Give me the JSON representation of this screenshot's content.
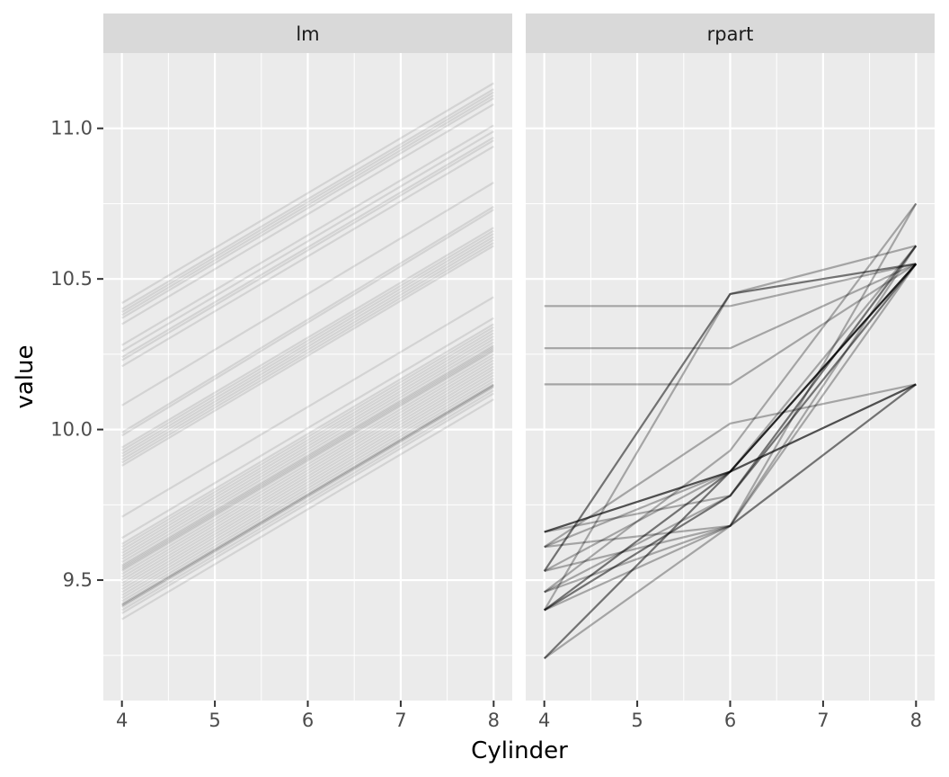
{
  "chart_data": {
    "type": "line",
    "facet_var": "model",
    "facets": [
      {
        "label": "lm",
        "series_points_x": [
          4,
          8
        ],
        "line_alpha": 0.1,
        "series": [
          {
            "values": [
              10.42,
              11.15
            ]
          },
          {
            "values": [
              10.4,
              11.13
            ]
          },
          {
            "values": [
              10.39,
              11.12
            ]
          },
          {
            "values": [
              10.38,
              11.11
            ]
          },
          {
            "values": [
              10.37,
              11.1
            ]
          },
          {
            "values": [
              10.35,
              11.08
            ]
          },
          {
            "values": [
              10.28,
              11.01
            ]
          },
          {
            "values": [
              10.26,
              10.99
            ]
          },
          {
            "values": [
              10.24,
              10.97
            ]
          },
          {
            "values": [
              10.23,
              10.96
            ]
          },
          {
            "values": [
              10.21,
              10.94
            ]
          },
          {
            "values": [
              10.08,
              10.82
            ]
          },
          {
            "values": [
              9.99,
              10.74
            ]
          },
          {
            "values": [
              9.98,
              10.73
            ]
          },
          {
            "values": [
              9.94,
              10.67
            ]
          },
          {
            "values": [
              9.93,
              10.66
            ]
          },
          {
            "values": [
              9.92,
              10.65
            ]
          },
          {
            "values": [
              9.91,
              10.64
            ]
          },
          {
            "values": [
              9.9,
              10.63
            ]
          },
          {
            "values": [
              9.89,
              10.62
            ]
          },
          {
            "values": [
              9.88,
              10.61
            ]
          },
          {
            "values": [
              9.71,
              10.44
            ]
          },
          {
            "values": [
              9.64,
              10.37
            ]
          },
          {
            "values": [
              9.62,
              10.35
            ]
          },
          {
            "values": [
              9.61,
              10.34
            ]
          },
          {
            "values": [
              9.6,
              10.33
            ]
          },
          {
            "values": [
              9.59,
              10.32
            ]
          },
          {
            "values": [
              9.58,
              10.31
            ]
          },
          {
            "values": [
              9.57,
              10.3
            ]
          },
          {
            "values": [
              9.56,
              10.29
            ]
          },
          {
            "values": [
              9.55,
              10.28
            ]
          },
          {
            "values": [
              9.545,
              10.275
            ]
          },
          {
            "values": [
              9.54,
              10.27
            ]
          },
          {
            "values": [
              9.535,
              10.265
            ]
          },
          {
            "values": [
              9.53,
              10.26
            ]
          },
          {
            "values": [
              9.52,
              10.25
            ]
          },
          {
            "values": [
              9.51,
              10.24
            ]
          },
          {
            "values": [
              9.5,
              10.23
            ]
          },
          {
            "values": [
              9.49,
              10.22
            ]
          },
          {
            "values": [
              9.48,
              10.21
            ]
          },
          {
            "values": [
              9.47,
              10.2
            ]
          },
          {
            "values": [
              9.46,
              10.19
            ]
          },
          {
            "values": [
              9.45,
              10.18
            ]
          },
          {
            "values": [
              9.44,
              10.17
            ]
          },
          {
            "values": [
              9.43,
              10.16
            ]
          },
          {
            "values": [
              9.42,
              10.15
            ]
          },
          {
            "values": [
              9.415,
              10.145
            ]
          },
          {
            "values": [
              9.41,
              10.14
            ]
          },
          {
            "values": [
              9.4,
              10.13
            ]
          },
          {
            "values": [
              9.39,
              10.12
            ]
          },
          {
            "values": [
              9.37,
              10.1
            ]
          },
          {
            "values": [
              9.415,
              10.145
            ]
          },
          {
            "values": [
              9.42,
              10.15
            ]
          }
        ]
      },
      {
        "label": "rpart",
        "series_points_x": [
          4,
          6,
          8
        ],
        "line_alpha": 0.3,
        "series": [
          {
            "values": [
              10.41,
              10.41,
              10.55
            ]
          },
          {
            "values": [
              10.27,
              10.27,
              10.55
            ]
          },
          {
            "values": [
              10.15,
              10.15,
              10.55
            ]
          },
          {
            "values": [
              9.53,
              10.45,
              10.55
            ]
          },
          {
            "values": [
              9.4,
              10.45,
              10.61
            ]
          },
          {
            "values": [
              9.66,
              9.86,
              10.15
            ]
          },
          {
            "values": [
              9.66,
              9.86,
              10.15
            ]
          },
          {
            "values": [
              9.61,
              9.68,
              10.15
            ]
          },
          {
            "values": [
              9.53,
              9.86,
              10.55
            ]
          },
          {
            "values": [
              9.4,
              9.86,
              10.55
            ]
          },
          {
            "values": [
              9.4,
              9.78,
              10.55
            ]
          },
          {
            "values": [
              9.46,
              9.78,
              10.61
            ]
          },
          {
            "values": [
              9.4,
              9.68,
              10.55
            ]
          },
          {
            "values": [
              9.24,
              9.68,
              10.75
            ]
          },
          {
            "values": [
              9.24,
              9.86,
              10.55
            ]
          },
          {
            "values": [
              9.66,
              9.78,
              10.61
            ]
          },
          {
            "values": [
              9.61,
              9.86,
              10.15
            ]
          },
          {
            "values": [
              9.46,
              9.68,
              10.15
            ]
          },
          {
            "values": [
              9.4,
              9.78,
              10.55
            ]
          },
          {
            "values": [
              9.53,
              9.68,
              10.61
            ]
          },
          {
            "values": [
              9.61,
              10.02,
              10.15
            ]
          },
          {
            "values": [
              9.46,
              9.93,
              10.75
            ]
          },
          {
            "values": [
              9.24,
              9.86,
              10.61
            ]
          },
          {
            "values": [
              9.4,
              9.86,
              10.55
            ]
          },
          {
            "values": [
              9.66,
              9.86,
              10.55
            ]
          },
          {
            "values": [
              9.53,
              10.45,
              10.55
            ]
          }
        ]
      }
    ],
    "x_ticks": [
      4,
      5,
      6,
      7,
      8
    ],
    "y_ticks": [
      9.5,
      10.0,
      10.5,
      11.0
    ],
    "y_tick_labels": [
      "9.5",
      "10.0",
      "10.5",
      "11.0"
    ],
    "xlim": [
      3.8,
      8.2
    ],
    "ylim": [
      9.1,
      11.25
    ],
    "xlabel": "Cylinder",
    "ylabel": "value",
    "grid": true,
    "legend": "none",
    "colors": {
      "panel_bg": "#ebebeb",
      "strip_bg": "#d9d9d9",
      "grid": "#ffffff",
      "line": "#000000"
    }
  }
}
